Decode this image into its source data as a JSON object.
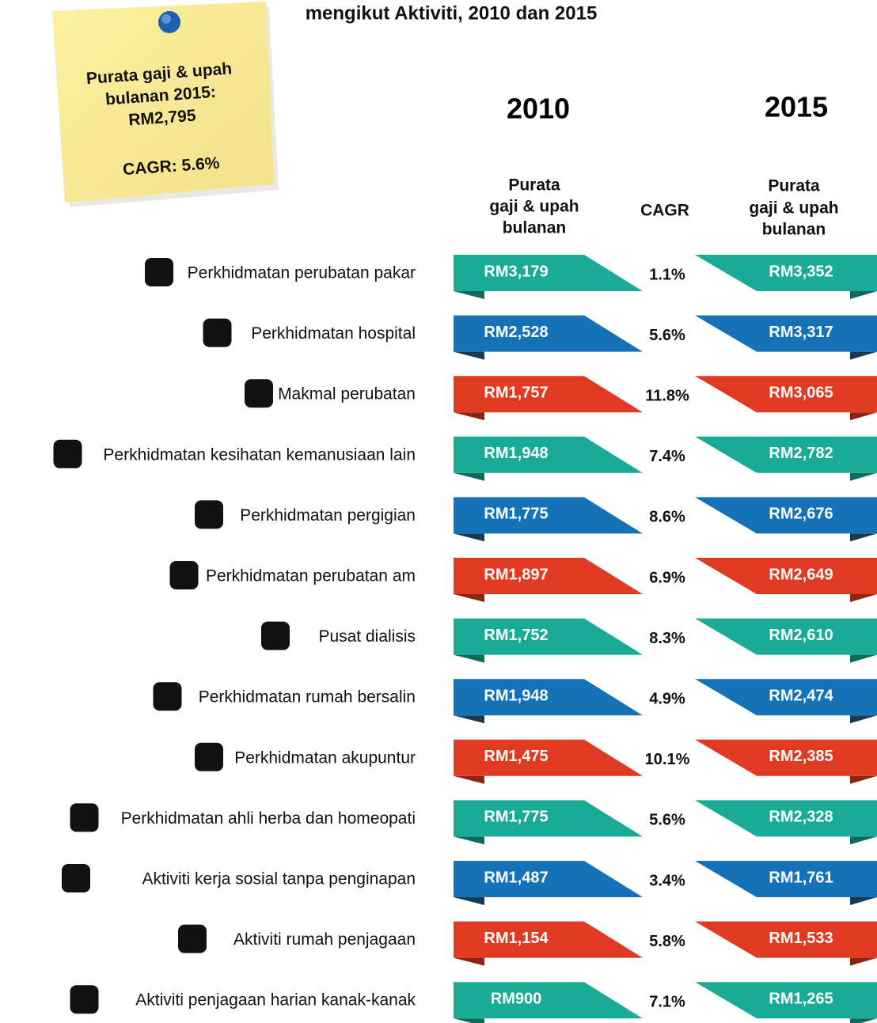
{
  "title": "mengikut Aktiviti, 2010 dan 2015",
  "note": {
    "lines": [
      "Purata gaji & upah",
      "bulanan 2015:",
      "RM2,795"
    ],
    "cagr": "CAGR: 5.6%"
  },
  "header": {
    "year_2010": "2010",
    "year_2015": "2015",
    "wage_2010": [
      "Purata",
      "gaji & upah",
      "bulanan"
    ],
    "cagr": "CAGR",
    "wage_2015": [
      "Purata",
      "gaji & upah",
      "bulanan"
    ]
  },
  "rows": [
    {
      "label": "Perkhidmatan perubatan pakar",
      "wage_2010": "RM3,179",
      "cagr": "1.1%",
      "wage_2015": "RM3,352",
      "color": "#1aab96",
      "fold": "#0f6b5e"
    },
    {
      "label": "Perkhidmatan hospital",
      "wage_2010": "RM2,528",
      "cagr": "5.6%",
      "wage_2015": "RM3,317",
      "color": "#1672b8",
      "fold": "#173a55"
    },
    {
      "label": "Makmal perubatan",
      "wage_2010": "RM1,757",
      "cagr": "11.8%",
      "wage_2015": "RM3,065",
      "color": "#e03a22",
      "fold": "#8c2414"
    },
    {
      "label": "Perkhidmatan kesihatan kemanusiaan lain",
      "wage_2010": "RM1,948",
      "cagr": "7.4%",
      "wage_2015": "RM2,782",
      "color": "#1aab96",
      "fold": "#0f6b5e"
    },
    {
      "label": "Perkhidmatan pergigian",
      "wage_2010": "RM1,775",
      "cagr": "8.6%",
      "wage_2015": "RM2,676",
      "color": "#1672b8",
      "fold": "#173a55"
    },
    {
      "label": "Perkhidmatan perubatan am",
      "wage_2010": "RM1,897",
      "cagr": "6.9%",
      "wage_2015": "RM2,649",
      "color": "#e03a22",
      "fold": "#8c2414"
    },
    {
      "label": "Pusat dialisis",
      "wage_2010": "RM1,752",
      "cagr": "8.3%",
      "wage_2015": "RM2,610",
      "color": "#1aab96",
      "fold": "#0f6b5e"
    },
    {
      "label": "Perkhidmatan rumah bersalin",
      "wage_2010": "RM1,948",
      "cagr": "4.9%",
      "wage_2015": "RM2,474",
      "color": "#1672b8",
      "fold": "#173a55"
    },
    {
      "label": "Perkhidmatan akupuntur",
      "wage_2010": "RM1,475",
      "cagr": "10.1%",
      "wage_2015": "RM2,385",
      "color": "#e03a22",
      "fold": "#8c2414"
    },
    {
      "label": "Perkhidmatan ahli herba dan homeopati",
      "wage_2010": "RM1,775",
      "cagr": "5.6%",
      "wage_2015": "RM2,328",
      "color": "#1aab96",
      "fold": "#0f6b5e"
    },
    {
      "label": "Aktiviti kerja sosial tanpa penginapan",
      "wage_2010": "RM1,487",
      "cagr": "3.4%",
      "wage_2015": "RM1,761",
      "color": "#1672b8",
      "fold": "#173a55"
    },
    {
      "label": "Aktiviti rumah penjagaan",
      "wage_2010": "RM1,154",
      "cagr": "5.8%",
      "wage_2015": "RM1,533",
      "color": "#e03a22",
      "fold": "#8c2414"
    },
    {
      "label": "Aktiviti penjagaan harian kanak-kanak",
      "wage_2010": "RM900",
      "cagr": "7.1%",
      "wage_2015": "RM1,265",
      "color": "#1aab96",
      "fold": "#0f6b5e"
    }
  ]
}
